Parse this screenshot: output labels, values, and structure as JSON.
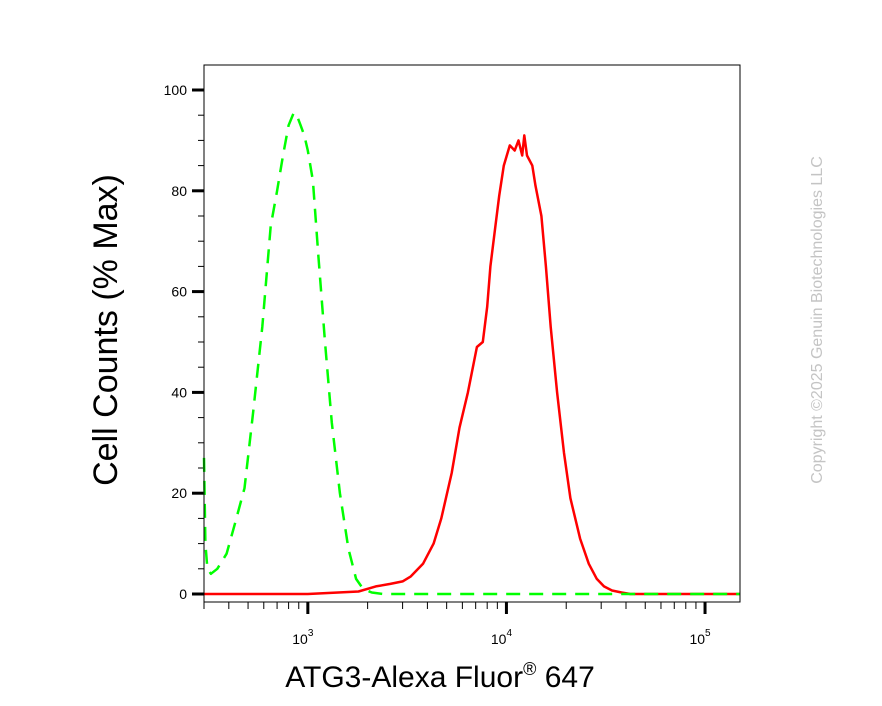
{
  "chart_data": {
    "type": "line",
    "x_scale": "log",
    "xlim": [
      300,
      150000
    ],
    "ylim": [
      0,
      100
    ],
    "ylabel": "Cell Counts (% Max)",
    "xlabel": {
      "main": "ATG3-Alexa Fluor",
      "sup": "®",
      "tail": " 647"
    },
    "yticks": [
      {
        "value": 0,
        "label": "0"
      },
      {
        "value": 20,
        "label": "20"
      },
      {
        "value": 40,
        "label": "40"
      },
      {
        "value": 60,
        "label": "60"
      },
      {
        "value": 80,
        "label": "80"
      },
      {
        "value": 100,
        "label": "100"
      }
    ],
    "xticks": [
      {
        "value": 1000,
        "base": "10",
        "exp": "3"
      },
      {
        "value": 10000,
        "base": "10",
        "exp": "4"
      },
      {
        "value": 100000,
        "base": "10",
        "exp": "5"
      }
    ],
    "grid": false,
    "series": [
      {
        "color": "#ff0000",
        "dash": "solid",
        "x": [
          300,
          1000,
          1800,
          2200,
          2600,
          3000,
          3300,
          3800,
          4300,
          4700,
          5300,
          5800,
          6400,
          7100,
          7600,
          8000,
          8300,
          8800,
          9200,
          9700,
          10400,
          11000,
          11500,
          12000,
          12300,
          12700,
          13500,
          14000,
          15000,
          15800,
          16700,
          18000,
          19500,
          21000,
          23500,
          26000,
          28500,
          31000,
          34000,
          38000,
          42000,
          47000,
          150000
        ],
        "y": [
          0,
          0,
          0.5,
          1.5,
          2,
          2.5,
          3.5,
          6,
          10,
          15,
          24,
          33,
          40,
          49,
          50,
          57,
          65,
          73,
          79,
          85,
          89,
          88,
          90,
          87,
          91,
          87,
          85,
          81,
          75,
          65,
          53,
          40,
          28,
          19,
          11,
          6,
          3,
          1.5,
          0.7,
          0.3,
          0,
          0,
          0
        ]
      },
      {
        "color": "#00ff00",
        "dash": "dashed",
        "x": [
          300,
          305,
          312,
          325,
          350,
          390,
          430,
          480,
          530,
          590,
          650,
          700,
          750,
          800,
          850,
          880,
          920,
          960,
          1000,
          1060,
          1130,
          1220,
          1320,
          1450,
          1600,
          1750,
          1900,
          2100,
          2400,
          3000,
          5000,
          10000,
          50000,
          150000
        ],
        "y": [
          27,
          10,
          5,
          4,
          5,
          8,
          14,
          21,
          36,
          53,
          73,
          80,
          87,
          93,
          95.5,
          95,
          93,
          91,
          88,
          82,
          67,
          50,
          34,
          20,
          9,
          3,
          1,
          0.3,
          0,
          0,
          0,
          0,
          0,
          0
        ]
      }
    ]
  },
  "copyright": "Copyright ©2025 Genuin Biotechnologies LLC"
}
